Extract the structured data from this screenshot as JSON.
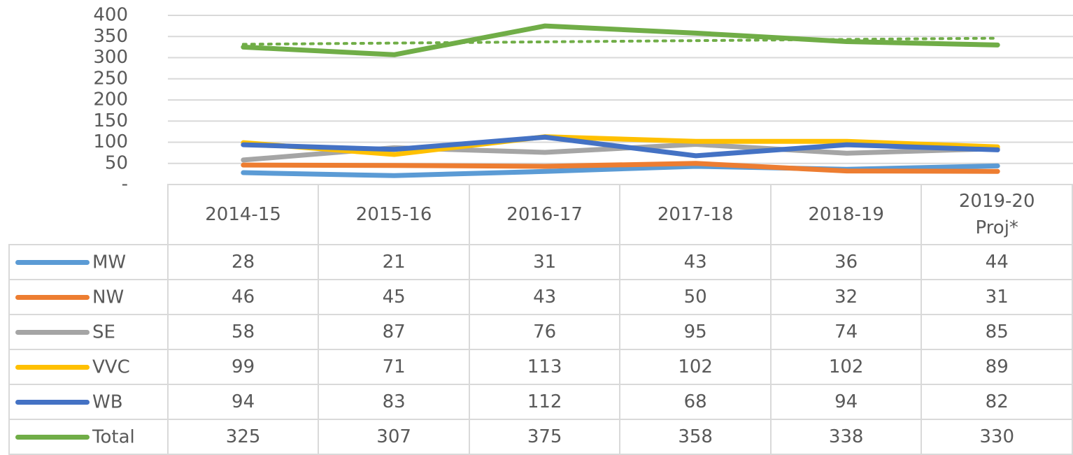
{
  "chart_data": {
    "type": "line",
    "categories": [
      "2014-15",
      "2015-16",
      "2016-17",
      "2017-18",
      "2018-19",
      "2019-20 Proj*"
    ],
    "series": [
      {
        "name": "MW",
        "color": "#5b9bd5",
        "values": [
          28,
          21,
          31,
          43,
          36,
          44
        ]
      },
      {
        "name": "NW",
        "color": "#ed7d31",
        "values": [
          46,
          45,
          43,
          50,
          32,
          31
        ]
      },
      {
        "name": "SE",
        "color": "#a5a5a5",
        "values": [
          58,
          87,
          76,
          95,
          74,
          85
        ]
      },
      {
        "name": "VVC",
        "color": "#ffc000",
        "values": [
          99,
          71,
          113,
          102,
          102,
          89
        ]
      },
      {
        "name": "WB",
        "color": "#4472c4",
        "values": [
          94,
          83,
          112,
          68,
          94,
          82
        ]
      },
      {
        "name": "Total",
        "color": "#70ad47",
        "values": [
          325,
          307,
          375,
          358,
          338,
          330
        ],
        "trendline": true
      }
    ],
    "ylim": [
      0,
      400
    ],
    "yticks": [
      {
        "value": 0,
        "label": "-"
      },
      50,
      100,
      150,
      200,
      250,
      300,
      350,
      400
    ],
    "grid": true,
    "data_table": true
  }
}
